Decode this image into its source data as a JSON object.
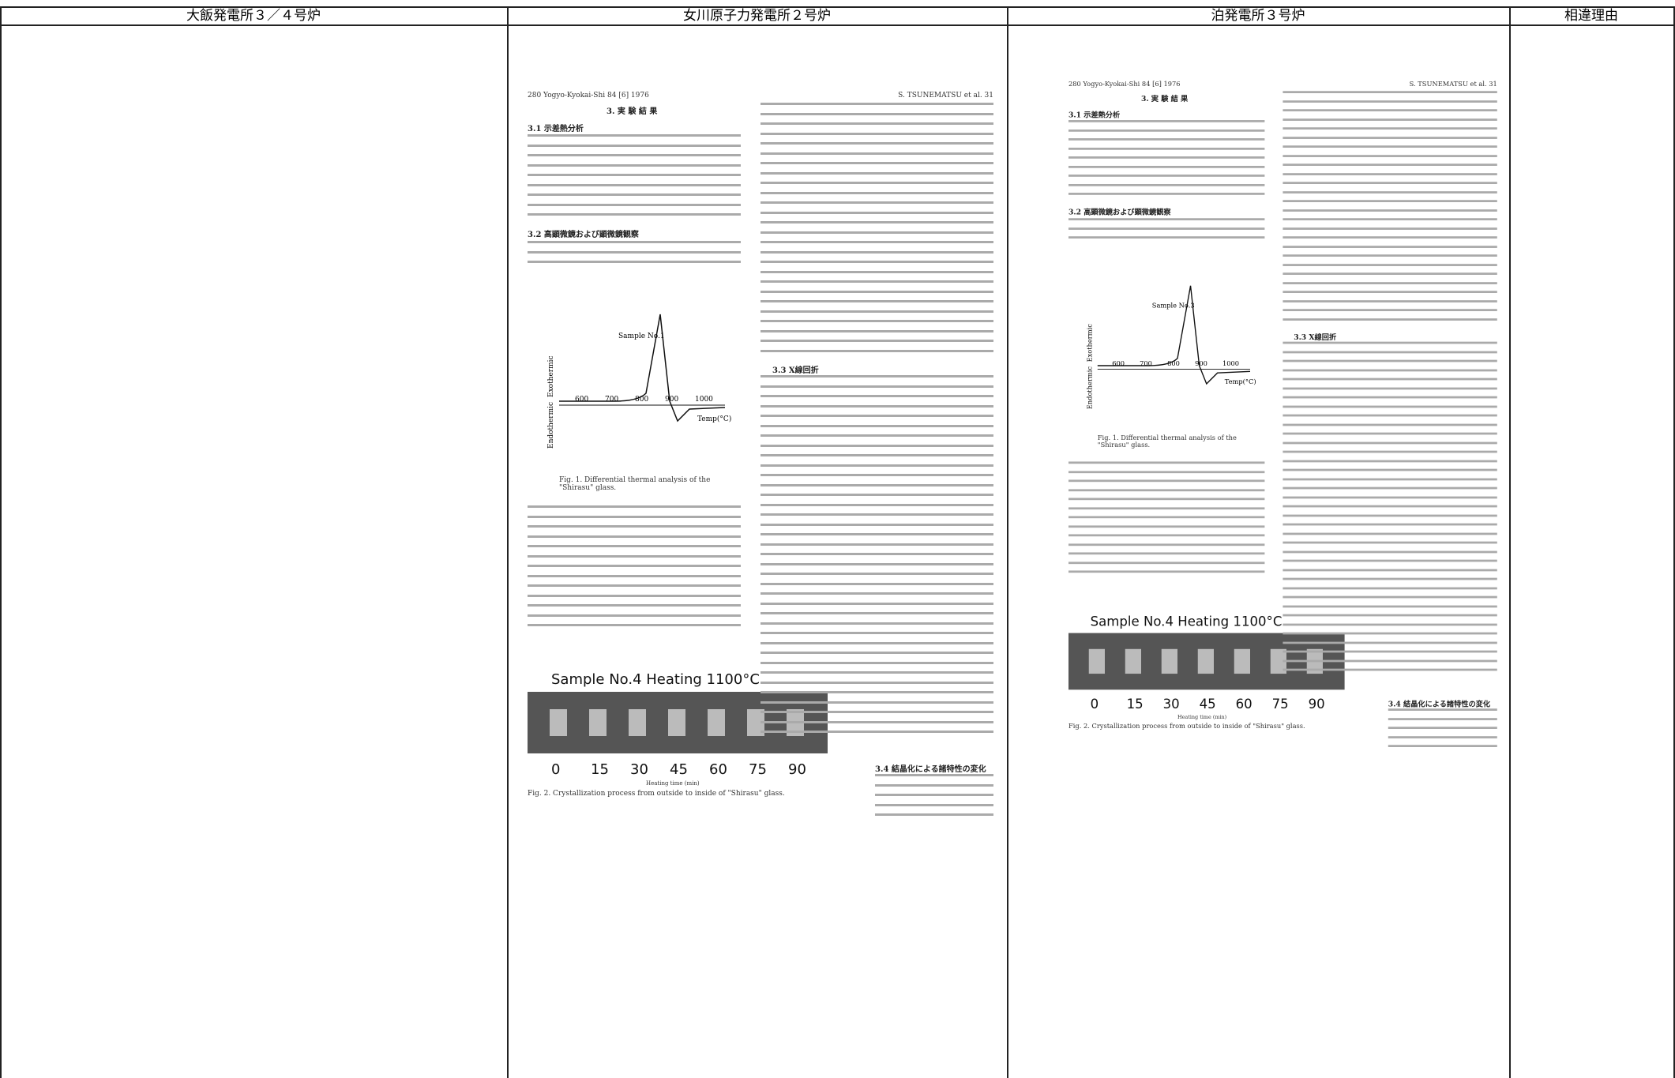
{
  "header": {
    "columns": [
      "大飯発電所３／４号炉",
      "女川原子力発電所２号炉",
      "泊発電所３号炉",
      "相違理由"
    ]
  },
  "documents": [
    {
      "running_head_left": "280 Yogyo-Kyokai-Shi 84 [6] 1976",
      "running_head_right": "S. TSUNEMATSU et al. 31",
      "section_title": "3. 実 験 結 果",
      "section_1": "3.1 示差熱分析",
      "section_2": "3.2 高顕微鏡および顕微鏡観察",
      "section_3": "3.3 X線回折",
      "section_4": "3.4 結晶化による諸特性の変化",
      "figure1": {
        "sample": "Sample No.1",
        "exo": "Exothermic",
        "endo": "Endothermic",
        "ticks": [
          "600",
          "700",
          "800",
          "900",
          "1000"
        ],
        "axis": "Temp(°C)",
        "caption": "Fig. 1. Differential thermal analysis of the \"Shirasu\" glass."
      },
      "figure2": {
        "title": "Sample No.4 Heating 1100°C",
        "ticks": [
          "0",
          "15",
          "30",
          "45",
          "60",
          "75",
          "90"
        ],
        "axis": "Heating time (min)",
        "caption": "Fig. 2. Crystallization process from outside to inside of \"Shirasu\" glass."
      }
    },
    {
      "running_head_left": "280 Yogyo-Kyokai-Shi 84 [6] 1976",
      "running_head_right": "S. TSUNEMATSU et al. 31",
      "section_title": "3. 実 験 結 果",
      "section_1": "3.1 示差熱分析",
      "section_2": "3.2 高顕微鏡および顕微鏡観察",
      "section_3": "3.3 X線回折",
      "section_4": "3.4 結晶化による諸特性の変化",
      "figure1": {
        "sample": "Sample No.3",
        "exo": "Exothermic",
        "endo": "Endothermic",
        "ticks": [
          "600",
          "700",
          "800",
          "900",
          "1000"
        ],
        "axis": "Temp(°C)",
        "caption": "Fig. 1. Differential thermal analysis of the \"Shirasu\" glass."
      },
      "figure2": {
        "title": "Sample No.4 Heating 1100°C",
        "ticks": [
          "0",
          "15",
          "30",
          "45",
          "60",
          "75",
          "90"
        ],
        "axis": "Heating time (min)",
        "caption": "Fig. 2. Crystallization process from outside to inside of \"Shirasu\" glass."
      }
    }
  ]
}
